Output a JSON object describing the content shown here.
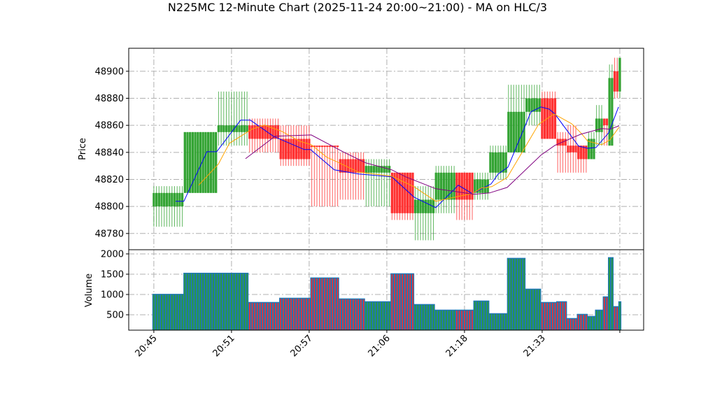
{
  "chart_data": {
    "type": "candlestick",
    "title": "N225MC 12-Minute Chart (2025-11-24 20:00~21:00) - MA on HLC/3",
    "price_panel": {
      "ylabel": "Price",
      "ylim": [
        48768,
        48917
      ],
      "yticks": [
        48780,
        48800,
        48820,
        48840,
        48860,
        48880,
        48900
      ],
      "grid": true
    },
    "volume_panel": {
      "ylabel": "Volume",
      "ylim": [
        121,
        2103
      ],
      "yticks": [
        500,
        1000,
        1500,
        2000
      ],
      "grid": true
    },
    "xlim": [
      -9.7,
      189.2
    ],
    "xticks": [
      {
        "index": 0,
        "label": "20:45"
      },
      {
        "index": 30,
        "label": "20:51"
      },
      {
        "index": 60,
        "label": "20:57"
      },
      {
        "index": 90,
        "label": "21:06"
      },
      {
        "index": 120,
        "label": "21:18"
      },
      {
        "index": 150,
        "label": "21:33"
      },
      {
        "index": 180,
        "label": ""
      }
    ],
    "colors": {
      "up": "#2ca02c",
      "down": "#ff2a2a",
      "volume": "#1f77b4",
      "ma_short": "#0000ff",
      "ma_mid": "#ffa500",
      "ma_long": "#800080",
      "grid": "#b0b0b0"
    },
    "candles": [
      {
        "start": 0,
        "rows": 12,
        "o": 48800,
        "h": 48815,
        "l": 48785,
        "c": 48810,
        "v": 1010
      },
      {
        "start": 12,
        "rows": 13,
        "o": 48810,
        "h": 48855,
        "l": 48810,
        "c": 48855,
        "v": 1530
      },
      {
        "start": 25,
        "rows": 12,
        "o": 48855,
        "h": 48885,
        "l": 48845,
        "c": 48860,
        "v": 1530
      },
      {
        "start": 37,
        "rows": 12,
        "o": 48860,
        "h": 48865,
        "l": 48840,
        "c": 48850,
        "v": 810
      },
      {
        "start": 49,
        "rows": 12,
        "o": 48850,
        "h": 48860,
        "l": 48830,
        "c": 48835,
        "v": 914
      },
      {
        "start": 61,
        "rows": 11,
        "o": 48845,
        "h": 48845,
        "l": 48800,
        "c": 48844,
        "v": 1414
      },
      {
        "start": 72,
        "rows": 10,
        "o": 48835,
        "h": 48840,
        "l": 48805,
        "c": 48825,
        "v": 897
      },
      {
        "start": 82,
        "rows": 10,
        "o": 48825,
        "h": 48835,
        "l": 48800,
        "c": 48830,
        "v": 828
      },
      {
        "start": 92,
        "rows": 9,
        "o": 48825,
        "h": 48825,
        "l": 48790,
        "c": 48795,
        "v": 1517
      },
      {
        "start": 101,
        "rows": 8,
        "o": 48795,
        "h": 48815,
        "l": 48775,
        "c": 48805,
        "v": 759
      },
      {
        "start": 109,
        "rows": 8,
        "o": 48805,
        "h": 48830,
        "l": 48795,
        "c": 48825,
        "v": 621
      },
      {
        "start": 117,
        "rows": 7,
        "o": 48825,
        "h": 48825,
        "l": 48790,
        "c": 48805,
        "v": 621
      },
      {
        "start": 124,
        "rows": 6,
        "o": 48810,
        "h": 48825,
        "l": 48805,
        "c": 48820,
        "v": 845
      },
      {
        "start": 130,
        "rows": 7,
        "o": 48825,
        "h": 48845,
        "l": 48820,
        "c": 48840,
        "v": 534
      },
      {
        "start": 137,
        "rows": 7,
        "o": 48840,
        "h": 48890,
        "l": 48840,
        "c": 48870,
        "v": 1897
      },
      {
        "start": 144,
        "rows": 6,
        "o": 48870,
        "h": 48890,
        "l": 48860,
        "c": 48880,
        "v": 1138
      },
      {
        "start": 150,
        "rows": 6,
        "o": 48880,
        "h": 48885,
        "l": 48850,
        "c": 48850,
        "v": 810
      },
      {
        "start": 156,
        "rows": 4,
        "o": 48850,
        "h": 48855,
        "l": 48825,
        "c": 48845,
        "v": 828
      },
      {
        "start": 160,
        "rows": 4,
        "o": 48845,
        "h": 48860,
        "l": 48825,
        "c": 48840,
        "v": 414
      },
      {
        "start": 164,
        "rows": 4,
        "o": 48845,
        "h": 48845,
        "l": 48825,
        "c": 48835,
        "v": 517
      },
      {
        "start": 168,
        "rows": 3,
        "o": 48835,
        "h": 48855,
        "l": 48835,
        "c": 48850,
        "v": 466
      },
      {
        "start": 171,
        "rows": 3,
        "o": 48855,
        "h": 48875,
        "l": 48845,
        "c": 48865,
        "v": 621
      },
      {
        "start": 174,
        "rows": 2,
        "o": 48865,
        "h": 48865,
        "l": 48845,
        "c": 48860,
        "v": 948
      },
      {
        "start": 176,
        "rows": 2,
        "o": 48845,
        "h": 48905,
        "l": 48845,
        "c": 48895,
        "v": 1914
      },
      {
        "start": 178,
        "rows": 2,
        "o": 48900,
        "h": 48910,
        "l": 48880,
        "c": 48885,
        "v": 707
      },
      {
        "start": 180,
        "rows": 1,
        "o": 48885,
        "h": 48910,
        "l": 48880,
        "c": 48910,
        "v": 828
      }
    ],
    "moving_averages": [
      {
        "key": "ma_short",
        "points": [
          [
            8.4,
            48803.8
          ],
          [
            11.6,
            48803.8
          ],
          [
            20.5,
            48840.5
          ],
          [
            24.3,
            48840.5
          ],
          [
            33.5,
            48863.8
          ],
          [
            37.3,
            48863.8
          ],
          [
            46.2,
            48851.9
          ],
          [
            58.1,
            48842.1
          ],
          [
            60.5,
            48842.1
          ],
          [
            69.7,
            48827.1
          ],
          [
            79.2,
            48824.0
          ],
          [
            91.9,
            48821.9
          ],
          [
            100.5,
            48806.9
          ],
          [
            108.9,
            48799.1
          ],
          [
            117.6,
            48815.7
          ],
          [
            123.0,
            48809.5
          ],
          [
            130.3,
            48816.7
          ],
          [
            133.0,
            48824.0
          ],
          [
            136.8,
            48829.1
          ],
          [
            145.7,
            48870.0
          ],
          [
            149.5,
            48873.6
          ],
          [
            152.7,
            48872.0
          ],
          [
            154.9,
            48868.4
          ],
          [
            164.1,
            48844.6
          ],
          [
            167.6,
            48843.0
          ],
          [
            170.8,
            48843.6
          ],
          [
            175.7,
            48854.5
          ],
          [
            179.5,
            48873.6
          ]
        ]
      },
      {
        "key": "ma_mid",
        "points": [
          [
            17.3,
            48815.7
          ],
          [
            24.9,
            48831.2
          ],
          [
            29.2,
            48846.7
          ],
          [
            37.8,
            48857.1
          ],
          [
            42.7,
            48860.2
          ],
          [
            49.5,
            48855.5
          ],
          [
            56.2,
            48848.3
          ],
          [
            60.8,
            48845.7
          ],
          [
            66.8,
            48836.4
          ],
          [
            71.1,
            48832.7
          ],
          [
            78.9,
            48825.5
          ],
          [
            91.9,
            48822.4
          ],
          [
            100.5,
            48814.6
          ],
          [
            108.9,
            48803.8
          ],
          [
            117.6,
            48807.4
          ],
          [
            123.0,
            48809.5
          ],
          [
            126.5,
            48813.6
          ],
          [
            130.5,
            48814.6
          ],
          [
            136.5,
            48821.4
          ],
          [
            142.4,
            48840.5
          ],
          [
            148.6,
            48860.7
          ],
          [
            154.6,
            48868.4
          ],
          [
            161.4,
            48861.2
          ],
          [
            164.9,
            48854.5
          ],
          [
            167.6,
            48848.3
          ],
          [
            173.0,
            48845.7
          ],
          [
            176.2,
            48849.3
          ],
          [
            179.7,
            48858.6
          ]
        ]
      },
      {
        "key": "ma_long",
        "points": [
          [
            35.4,
            48835.3
          ],
          [
            46.8,
            48851.9
          ],
          [
            60.8,
            48852.9
          ],
          [
            73.5,
            48840.0
          ],
          [
            81.9,
            48832.2
          ],
          [
            91.9,
            48827.1
          ],
          [
            97.3,
            48821.9
          ],
          [
            108.9,
            48813.1
          ],
          [
            123.8,
            48809.0
          ],
          [
            129.7,
            48810.0
          ],
          [
            136.5,
            48814.1
          ],
          [
            149.5,
            48837.9
          ],
          [
            154.9,
            48845.2
          ],
          [
            164.9,
            48853.4
          ],
          [
            173.0,
            48857.6
          ],
          [
            176.2,
            48857.1
          ],
          [
            179.7,
            48859.6
          ]
        ]
      }
    ]
  }
}
